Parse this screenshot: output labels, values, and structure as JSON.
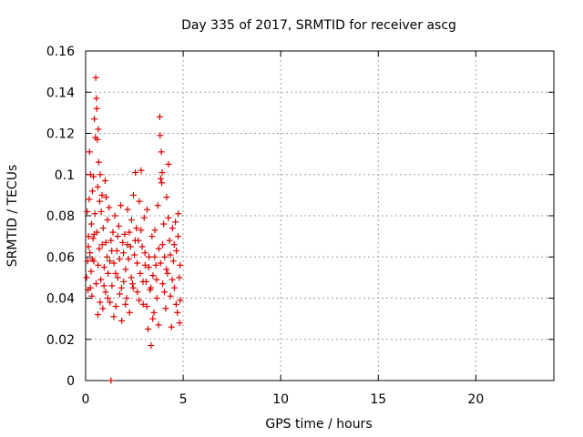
{
  "chart_data": {
    "type": "scatter",
    "title": "Day 335 of 2017, SRMTID for receiver ascg",
    "xlabel": "GPS time / hours",
    "ylabel": "SRMTID / TECUs",
    "xlim": [
      0,
      24
    ],
    "ylim": [
      0,
      0.16
    ],
    "grid": true,
    "x_ticks": [
      0,
      5,
      10,
      15,
      20
    ],
    "x_tick_labels": [
      "0",
      "5",
      "10",
      "15",
      "20"
    ],
    "y_ticks": [
      0,
      0.02,
      0.04,
      0.06,
      0.08,
      0.1,
      0.12,
      0.14,
      0.16
    ],
    "y_tick_labels": [
      "0",
      "0.02",
      "0.04",
      "0.06",
      "0.08",
      "0.1",
      "0.12",
      "0.14",
      "0.16"
    ],
    "marker": "plus",
    "color": "#dd0000",
    "series": [
      {
        "name": "SRMTID",
        "points": [
          [
            0.05,
            0.05
          ],
          [
            0.1,
            0.058
          ],
          [
            0.12,
            0.044
          ],
          [
            0.15,
            0.07
          ],
          [
            0.18,
            0.088
          ],
          [
            0.2,
            0.111
          ],
          [
            0.22,
            0.062
          ],
          [
            0.25,
            0.1
          ],
          [
            0.28,
            0.053
          ],
          [
            0.3,
            0.076
          ],
          [
            0.32,
            0.041
          ],
          [
            0.35,
            0.092
          ],
          [
            0.38,
            0.069
          ],
          [
            0.4,
            0.099
          ],
          [
            0.42,
            0.058
          ],
          [
            0.45,
            0.127
          ],
          [
            0.47,
            0.081
          ],
          [
            0.5,
            0.118
          ],
          [
            0.52,
            0.147
          ],
          [
            0.55,
            0.137
          ],
          [
            0.57,
            0.132
          ],
          [
            0.58,
            0.072
          ],
          [
            0.6,
            0.117
          ],
          [
            0.62,
            0.094
          ],
          [
            0.63,
            0.032
          ],
          [
            0.65,
            0.122
          ],
          [
            0.67,
            0.106
          ],
          [
            0.7,
            0.064
          ],
          [
            0.72,
            0.087
          ],
          [
            0.75,
            0.1
          ],
          [
            0.78,
            0.049
          ],
          [
            0.8,
            0.082
          ],
          [
            0.85,
            0.066
          ],
          [
            0.88,
            0.035
          ],
          [
            0.9,
            0.074
          ],
          [
            0.95,
            0.055
          ],
          [
            1.0,
            0.097
          ],
          [
            1.02,
            0.043
          ],
          [
            1.05,
            0.089
          ],
          [
            1.1,
            0.06
          ],
          [
            1.12,
            0.078
          ],
          [
            1.15,
            0.052
          ],
          [
            1.2,
            0.084
          ],
          [
            1.25,
            0.038
          ],
          [
            1.3,
            0.068
          ],
          [
            1.35,
            0.046
          ],
          [
            1.4,
            0.072
          ],
          [
            1.45,
            0.057
          ],
          [
            1.5,
            0.08
          ],
          [
            1.55,
            0.036
          ],
          [
            1.6,
            0.063
          ],
          [
            1.65,
            0.05
          ],
          [
            1.7,
            0.075
          ],
          [
            1.75,
            0.042
          ],
          [
            1.8,
            0.085
          ],
          [
            1.85,
            0.029
          ],
          [
            1.9,
            0.067
          ],
          [
            1.95,
            0.048
          ],
          [
            2.0,
            0.071
          ],
          [
            2.05,
            0.054
          ],
          [
            2.1,
            0.04
          ],
          [
            2.15,
            0.083
          ],
          [
            2.2,
            0.059
          ],
          [
            2.25,
            0.033
          ],
          [
            2.3,
            0.065
          ],
          [
            2.35,
            0.078
          ],
          [
            2.4,
            0.047
          ],
          [
            2.45,
            0.09
          ],
          [
            2.5,
            0.061
          ],
          [
            2.55,
            0.101
          ],
          [
            2.6,
            0.074
          ],
          [
            2.65,
            0.043
          ],
          [
            2.7,
            0.068
          ],
          [
            2.75,
            0.087
          ],
          [
            2.8,
            0.052
          ],
          [
            2.85,
            0.102
          ],
          [
            2.9,
            0.065
          ],
          [
            2.95,
            0.037
          ],
          [
            3.0,
            0.079
          ],
          [
            3.05,
            0.056
          ],
          [
            3.1,
            0.048
          ],
          [
            3.15,
            0.083
          ],
          [
            3.2,
            0.025
          ],
          [
            3.25,
            0.06
          ],
          [
            3.3,
            0.044
          ],
          [
            3.35,
            0.017
          ],
          [
            3.4,
            0.07
          ],
          [
            3.45,
            0.051
          ],
          [
            3.5,
            0.033
          ],
          [
            3.55,
            0.073
          ],
          [
            3.6,
            0.056
          ],
          [
            3.65,
            0.04
          ],
          [
            3.7,
            0.085
          ],
          [
            3.75,
            0.064
          ],
          [
            3.8,
            0.128
          ],
          [
            3.82,
            0.119
          ],
          [
            3.85,
            0.098
          ],
          [
            3.88,
            0.111
          ],
          [
            3.9,
            0.096
          ],
          [
            3.92,
            0.101
          ],
          [
            3.95,
            0.047
          ],
          [
            4.0,
            0.076
          ],
          [
            4.05,
            0.06
          ],
          [
            4.1,
            0.035
          ],
          [
            4.15,
            0.089
          ],
          [
            4.2,
            0.052
          ],
          [
            4.25,
            0.105
          ],
          [
            4.3,
            0.068
          ],
          [
            4.35,
            0.041
          ],
          [
            4.4,
            0.026
          ],
          [
            4.45,
            0.074
          ],
          [
            4.5,
            0.058
          ],
          [
            4.55,
            0.045
          ],
          [
            4.6,
            0.077
          ],
          [
            4.65,
            0.063
          ],
          [
            4.7,
            0.033
          ],
          [
            4.75,
            0.081
          ],
          [
            4.8,
            0.05
          ],
          [
            4.82,
            0.028
          ],
          [
            4.85,
            0.039
          ],
          [
            0.08,
            0.082
          ],
          [
            0.14,
            0.065
          ],
          [
            0.24,
            0.045
          ],
          [
            0.34,
            0.059
          ],
          [
            0.44,
            0.071
          ],
          [
            0.54,
            0.047
          ],
          [
            0.64,
            0.056
          ],
          [
            0.74,
            0.038
          ],
          [
            0.84,
            0.09
          ],
          [
            0.94,
            0.046
          ],
          [
            1.04,
            0.067
          ],
          [
            1.14,
            0.04
          ],
          [
            1.24,
            0.058
          ],
          [
            1.34,
            0.063
          ],
          [
            1.44,
            0.031
          ],
          [
            1.54,
            0.052
          ],
          [
            1.64,
            0.07
          ],
          [
            1.74,
            0.059
          ],
          [
            1.84,
            0.045
          ],
          [
            1.94,
            0.062
          ],
          [
            2.04,
            0.037
          ],
          [
            2.14,
            0.066
          ],
          [
            2.24,
            0.072
          ],
          [
            2.34,
            0.05
          ],
          [
            2.44,
            0.045
          ],
          [
            2.54,
            0.068
          ],
          [
            2.64,
            0.057
          ],
          [
            2.74,
            0.039
          ],
          [
            2.84,
            0.073
          ],
          [
            2.94,
            0.048
          ],
          [
            3.04,
            0.062
          ],
          [
            3.14,
            0.036
          ],
          [
            3.24,
            0.055
          ],
          [
            3.34,
            0.045
          ],
          [
            3.44,
            0.03
          ],
          [
            3.54,
            0.06
          ],
          [
            3.64,
            0.049
          ],
          [
            3.74,
            0.027
          ],
          [
            3.84,
            0.057
          ],
          [
            3.94,
            0.066
          ],
          [
            4.04,
            0.043
          ],
          [
            4.14,
            0.054
          ],
          [
            4.24,
            0.079
          ],
          [
            4.34,
            0.061
          ],
          [
            4.44,
            0.049
          ],
          [
            4.54,
            0.066
          ],
          [
            4.64,
            0.037
          ],
          [
            4.74,
            0.07
          ],
          [
            4.84,
            0.056
          ],
          [
            1.3,
            0.0
          ]
        ]
      }
    ]
  }
}
